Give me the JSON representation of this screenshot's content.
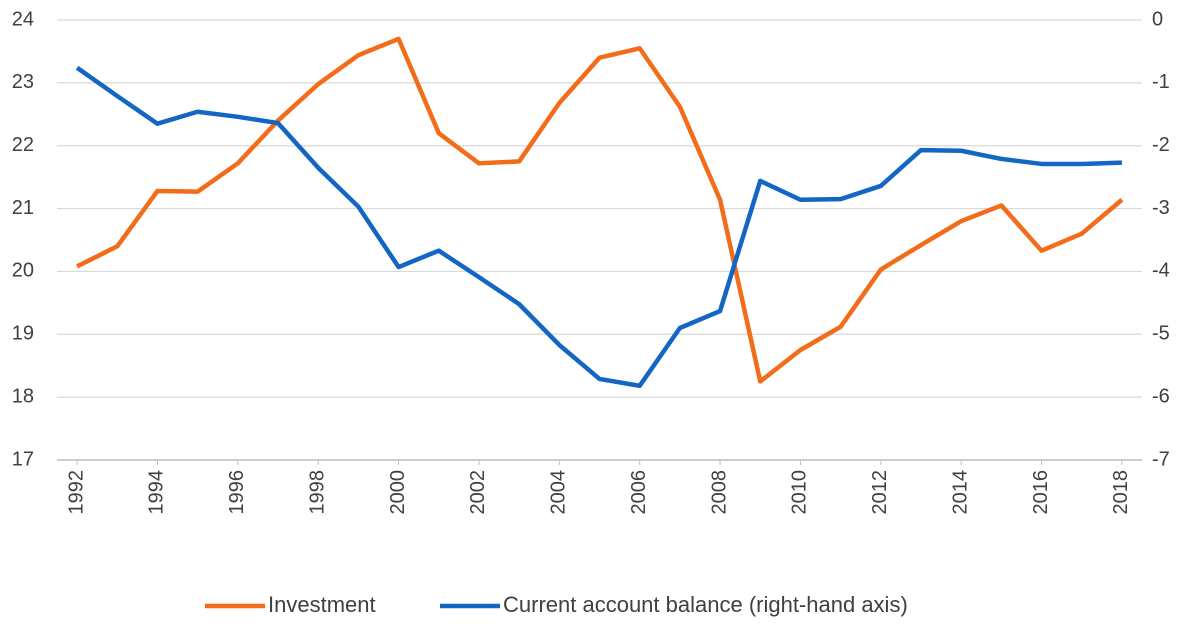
{
  "chart_data": {
    "type": "line",
    "x": [
      1992,
      1993,
      1994,
      1995,
      1996,
      1997,
      1998,
      1999,
      2000,
      2001,
      2002,
      2003,
      2004,
      2005,
      2006,
      2007,
      2008,
      2009,
      2010,
      2011,
      2012,
      2013,
      2014,
      2015,
      2016,
      2017,
      2018
    ],
    "xlim": [
      1991.5,
      2018.5
    ],
    "xticks": [
      1992,
      1994,
      1996,
      1998,
      2000,
      2002,
      2004,
      2006,
      2008,
      2010,
      2012,
      2014,
      2016,
      2018
    ],
    "ylim": [
      17,
      24
    ],
    "yticks": [
      17,
      18,
      19,
      20,
      21,
      22,
      23,
      24
    ],
    "y2lim": [
      -7,
      0
    ],
    "y2ticks": [
      -7,
      -6,
      -5,
      -4,
      -3,
      -2,
      -1,
      0
    ],
    "grid": true,
    "legend": "bottom",
    "series": [
      {
        "name": "Investment",
        "color": "#f26c1a",
        "values": [
          20.08,
          20.4,
          21.28,
          21.27,
          21.72,
          22.4,
          22.98,
          23.44,
          23.7,
          22.2,
          21.72,
          21.75,
          22.68,
          23.4,
          23.55,
          22.62,
          21.14,
          18.25,
          18.75,
          19.12,
          20.03,
          20.42,
          20.8,
          21.05,
          20.33,
          20.6,
          21.14
        ]
      },
      {
        "name": "Current account balance (right-hand axis)",
        "color": "#1466c4",
        "axis": "y2",
        "values": [
          -0.76,
          -1.21,
          -1.65,
          -1.46,
          -1.54,
          -1.64,
          -2.35,
          -2.97,
          -3.93,
          -3.67,
          -4.09,
          -4.52,
          -5.17,
          -5.71,
          -5.82,
          -4.9,
          -4.63,
          -2.56,
          -2.86,
          -2.85,
          -2.64,
          -2.07,
          -2.08,
          -2.21,
          -2.29,
          -2.29,
          -2.27
        ]
      }
    ]
  }
}
